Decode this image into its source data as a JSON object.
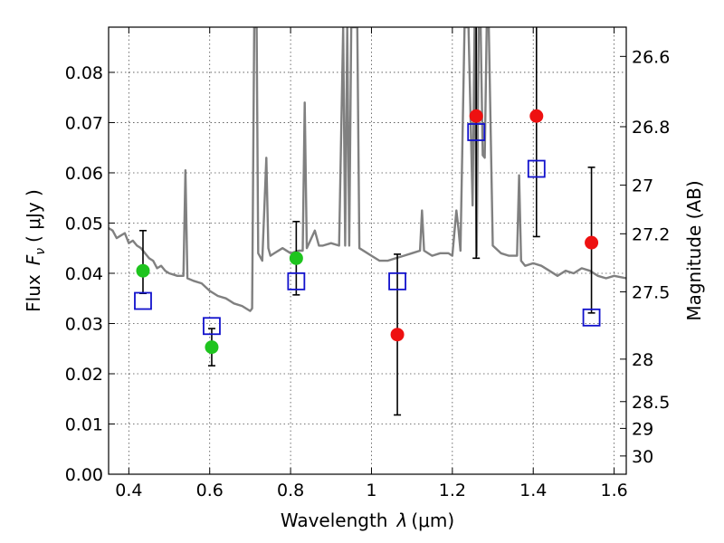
{
  "chart_data": {
    "type": "scatter",
    "xlabel_prefix": "Wavelength",
    "xlabel_symbol": "λ",
    "xlabel_unit": "(μm)",
    "ylabel_prefix": "Flux",
    "ylabel_symbol": "F",
    "ylabel_subscript": "ν",
    "ylabel_unit": "( μJy )",
    "y2label": "Magnitude (AB)",
    "xlim": [
      0.35,
      1.63
    ],
    "ylim": [
      0.0,
      0.089
    ],
    "grid": true,
    "x_ticks": [
      0.4,
      0.6,
      0.8,
      1.0,
      1.2,
      1.4,
      1.6
    ],
    "x_tick_labels": [
      "0.4",
      "0.6",
      "0.8",
      "1",
      "1.2",
      "1.4",
      "1.6"
    ],
    "y_ticks": [
      0.0,
      0.01,
      0.02,
      0.03,
      0.04,
      0.05,
      0.06,
      0.07,
      0.08
    ],
    "y_tick_labels": [
      "0.00",
      "0.01",
      "0.02",
      "0.03",
      "0.04",
      "0.05",
      "0.06",
      "0.07",
      "0.08"
    ],
    "mag_ticks": [
      26.6,
      26.8,
      27,
      27.2,
      27.5,
      28,
      28.5,
      29,
      30
    ],
    "mag_tick_labels": [
      "26.6",
      "26.8",
      "27",
      "27.2",
      "27.5",
      "28",
      "28.5",
      "29",
      "30"
    ],
    "colors": {
      "detection": "#1ec41e",
      "nondetection": "#ee1111",
      "model_box": "#1111cc",
      "spectrum": "#808080",
      "errorbar": "#000000"
    },
    "photometry": [
      {
        "x": 0.435,
        "y": 0.0405,
        "err_lo": 0.0045,
        "err_hi": 0.008,
        "status": "detection"
      },
      {
        "x": 0.605,
        "y": 0.0253,
        "err_lo": 0.0037,
        "err_hi": 0.0037,
        "status": "detection"
      },
      {
        "x": 0.814,
        "y": 0.043,
        "err_lo": 0.0073,
        "err_hi": 0.0073,
        "status": "detection"
      },
      {
        "x": 1.064,
        "y": 0.0278,
        "err_lo": 0.016,
        "err_hi": 0.016,
        "status": "nondetection"
      },
      {
        "x": 1.259,
        "y": 0.0713,
        "err_lo": 0.0283,
        "err_hi": 0.03,
        "status": "nondetection"
      },
      {
        "x": 1.408,
        "y": 0.0713,
        "err_lo": 0.024,
        "err_hi": 0.03,
        "status": "nondetection"
      },
      {
        "x": 1.544,
        "y": 0.0461,
        "err_lo": 0.014,
        "err_hi": 0.015,
        "status": "nondetection"
      }
    ],
    "model_photometry": [
      {
        "x": 0.435,
        "y": 0.0345
      },
      {
        "x": 0.605,
        "y": 0.0295
      },
      {
        "x": 0.814,
        "y": 0.0384
      },
      {
        "x": 1.064,
        "y": 0.0384
      },
      {
        "x": 1.259,
        "y": 0.0681
      },
      {
        "x": 1.408,
        "y": 0.0608
      },
      {
        "x": 1.544,
        "y": 0.0312
      }
    ],
    "model_spectrum": {
      "x": [
        0.35,
        0.36,
        0.37,
        0.38,
        0.39,
        0.4,
        0.41,
        0.42,
        0.43,
        0.44,
        0.45,
        0.46,
        0.47,
        0.48,
        0.49,
        0.5,
        0.52,
        0.535,
        0.54,
        0.545,
        0.56,
        0.58,
        0.6,
        0.62,
        0.64,
        0.66,
        0.68,
        0.7,
        0.705,
        0.71,
        0.712,
        0.714,
        0.716,
        0.72,
        0.73,
        0.74,
        0.745,
        0.75,
        0.76,
        0.78,
        0.8,
        0.82,
        0.83,
        0.835,
        0.84,
        0.86,
        0.87,
        0.88,
        0.9,
        0.92,
        0.93,
        0.935,
        0.94,
        0.945,
        0.95,
        0.955,
        0.96,
        0.965,
        0.97,
        1.0,
        1.02,
        1.04,
        1.06,
        1.08,
        1.1,
        1.12,
        1.125,
        1.13,
        1.15,
        1.17,
        1.19,
        1.2,
        1.21,
        1.215,
        1.22,
        1.23,
        1.24,
        1.25,
        1.255,
        1.26,
        1.265,
        1.27,
        1.275,
        1.28,
        1.285,
        1.29,
        1.3,
        1.32,
        1.34,
        1.36,
        1.365,
        1.37,
        1.38,
        1.4,
        1.42,
        1.44,
        1.46,
        1.48,
        1.5,
        1.52,
        1.54,
        1.56,
        1.58,
        1.6,
        1.63
      ],
      "y": [
        0.049,
        0.0485,
        0.047,
        0.0475,
        0.048,
        0.046,
        0.0465,
        0.0455,
        0.045,
        0.044,
        0.043,
        0.0425,
        0.041,
        0.0415,
        0.0405,
        0.04,
        0.0395,
        0.0395,
        0.0605,
        0.039,
        0.0385,
        0.038,
        0.0365,
        0.0355,
        0.035,
        0.034,
        0.0335,
        0.0325,
        0.033,
        0.089,
        0.089,
        0.089,
        0.089,
        0.044,
        0.0425,
        0.063,
        0.045,
        0.0435,
        0.044,
        0.045,
        0.044,
        0.0445,
        0.0445,
        0.074,
        0.045,
        0.0485,
        0.0455,
        0.0455,
        0.046,
        0.0455,
        0.089,
        0.0455,
        0.089,
        0.0455,
        0.089,
        0.089,
        0.089,
        0.089,
        0.045,
        0.0435,
        0.0425,
        0.0425,
        0.043,
        0.0435,
        0.044,
        0.0445,
        0.0525,
        0.0445,
        0.0435,
        0.044,
        0.044,
        0.0435,
        0.0525,
        0.049,
        0.0445,
        0.089,
        0.089,
        0.0535,
        0.089,
        0.0435,
        0.089,
        0.089,
        0.0635,
        0.063,
        0.089,
        0.089,
        0.0455,
        0.044,
        0.0435,
        0.0435,
        0.0595,
        0.0425,
        0.0415,
        0.042,
        0.0415,
        0.0405,
        0.0395,
        0.0405,
        0.04,
        0.041,
        0.0405,
        0.0395,
        0.039,
        0.0395,
        0.039
      ]
    }
  }
}
